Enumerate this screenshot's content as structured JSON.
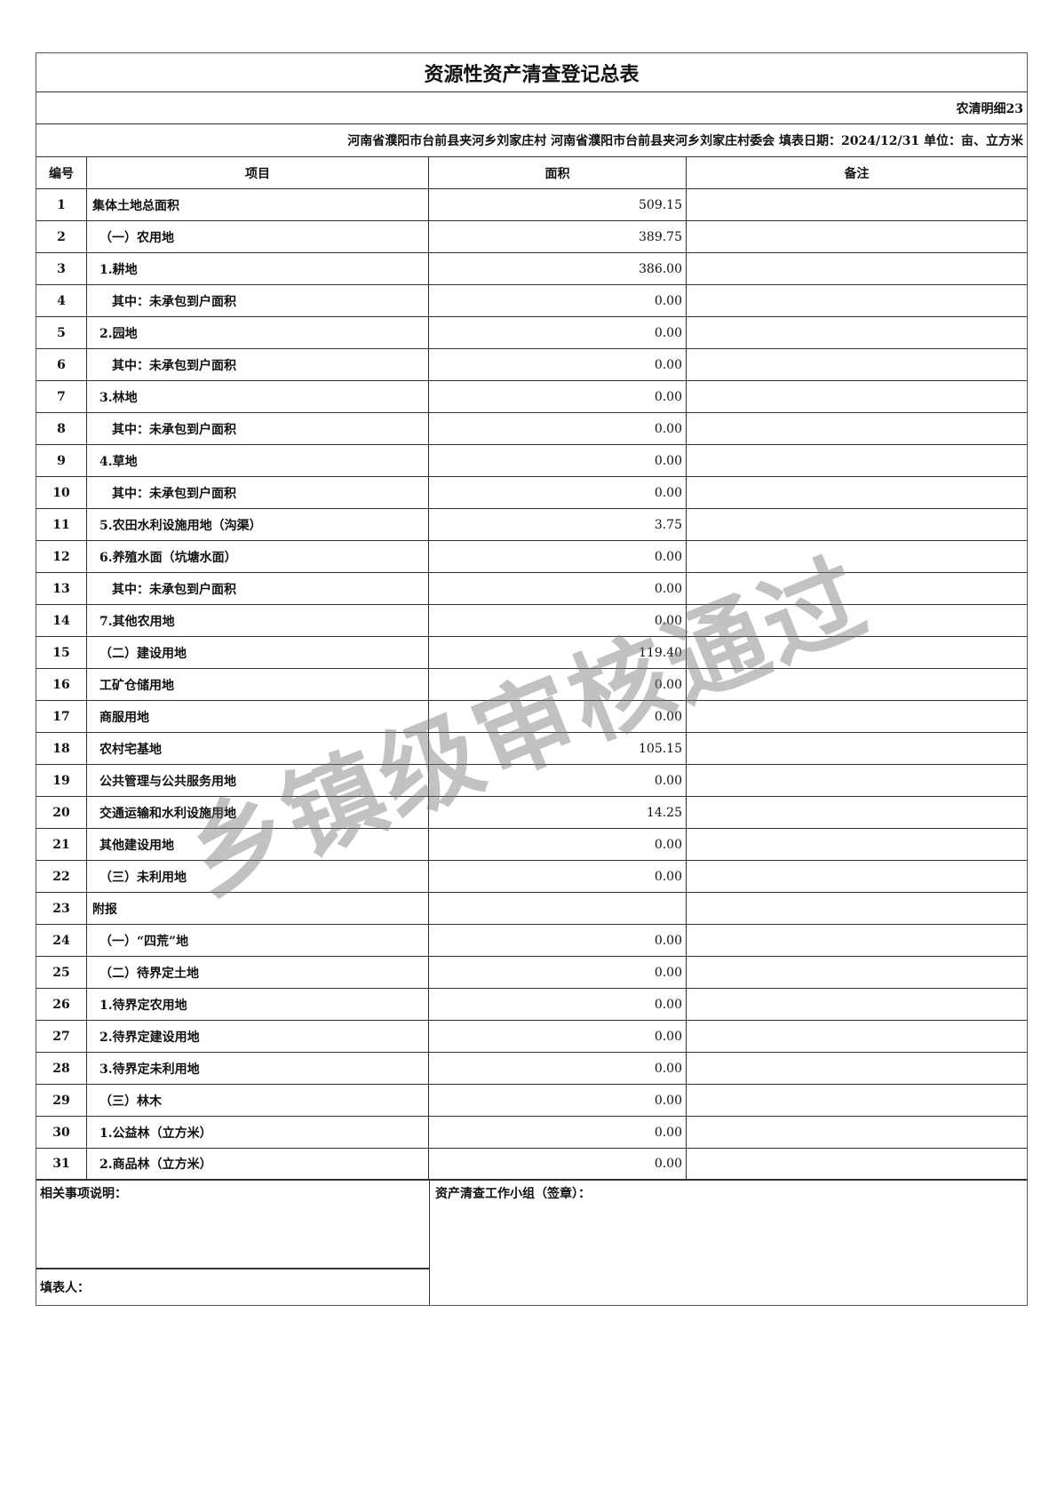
{
  "title": "资源性资产清查登记总表",
  "form_code": "农清明细23",
  "info_line": "河南省濮阳市台前县夹河乡刘家庄村  河南省濮阳市台前县夹河乡刘家庄村委会  填表日期：2024/12/31 单位：亩、立方米",
  "headers": {
    "no": "编号",
    "item": "项目",
    "area": "面积",
    "remark": "备注"
  },
  "rows": [
    {
      "no": "1",
      "item": "集体土地总面积",
      "area": "509.15",
      "indent": 0
    },
    {
      "no": "2",
      "item": "（一）农用地",
      "area": "389.75",
      "indent": 1
    },
    {
      "no": "3",
      "item": "1.耕地",
      "area": "386.00",
      "indent": 1
    },
    {
      "no": "4",
      "item": "其中：未承包到户面积",
      "area": "0.00",
      "indent": 2
    },
    {
      "no": "5",
      "item": "2.园地",
      "area": "0.00",
      "indent": 1
    },
    {
      "no": "6",
      "item": "其中：未承包到户面积",
      "area": "0.00",
      "indent": 2
    },
    {
      "no": "7",
      "item": "3.林地",
      "area": "0.00",
      "indent": 1
    },
    {
      "no": "8",
      "item": "其中：未承包到户面积",
      "area": "0.00",
      "indent": 2
    },
    {
      "no": "9",
      "item": "4.草地",
      "area": "0.00",
      "indent": 1
    },
    {
      "no": "10",
      "item": "其中：未承包到户面积",
      "area": "0.00",
      "indent": 2
    },
    {
      "no": "11",
      "item": "5.农田水利设施用地（沟渠）",
      "area": "3.75",
      "indent": 1
    },
    {
      "no": "12",
      "item": "6.养殖水面（坑塘水面）",
      "area": "0.00",
      "indent": 1
    },
    {
      "no": "13",
      "item": "其中：未承包到户面积",
      "area": "0.00",
      "indent": 2
    },
    {
      "no": "14",
      "item": "7.其他农用地",
      "area": "0.00",
      "indent": 1
    },
    {
      "no": "15",
      "item": "（二）建设用地",
      "area": "119.40",
      "indent": 1
    },
    {
      "no": "16",
      "item": "工矿仓储用地",
      "area": "0.00",
      "indent": 1
    },
    {
      "no": "17",
      "item": "商服用地",
      "area": "0.00",
      "indent": 1
    },
    {
      "no": "18",
      "item": "农村宅基地",
      "area": "105.15",
      "indent": 1
    },
    {
      "no": "19",
      "item": "公共管理与公共服务用地",
      "area": "0.00",
      "indent": 1
    },
    {
      "no": "20",
      "item": "交通运输和水利设施用地",
      "area": "14.25",
      "indent": 1
    },
    {
      "no": "21",
      "item": "其他建设用地",
      "area": "0.00",
      "indent": 1
    },
    {
      "no": "22",
      "item": "（三）未利用地",
      "area": "0.00",
      "indent": 1
    },
    {
      "no": "23",
      "item": "附报",
      "area": "",
      "indent": 0
    },
    {
      "no": "24",
      "item": "（一）“四荒”地",
      "area": "0.00",
      "indent": 1
    },
    {
      "no": "25",
      "item": "（二）待界定土地",
      "area": "0.00",
      "indent": 1
    },
    {
      "no": "26",
      "item": "1.待界定农用地",
      "area": "0.00",
      "indent": 1
    },
    {
      "no": "27",
      "item": "2.待界定建设用地",
      "area": "0.00",
      "indent": 1
    },
    {
      "no": "28",
      "item": "3.待界定未利用地",
      "area": "0.00",
      "indent": 1
    },
    {
      "no": "29",
      "item": "（三）林木",
      "area": "0.00",
      "indent": 1
    },
    {
      "no": "30",
      "item": "1.公益林（立方米）",
      "area": "0.00",
      "indent": 1
    },
    {
      "no": "31",
      "item": "2.商品林（立方米）",
      "area": "0.00",
      "indent": 1
    }
  ],
  "footer": {
    "notes_label": "相关事项说明：",
    "filler_label": "填表人：",
    "team_label": "资产清查工作小组（签章）："
  },
  "watermark": "乡镇级审核通过"
}
